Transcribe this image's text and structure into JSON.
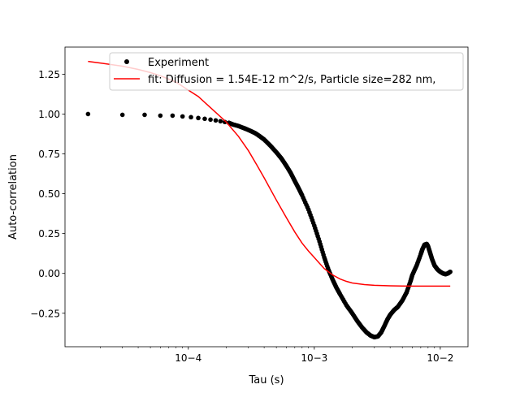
{
  "chart_data": {
    "type": "scatter",
    "title": "",
    "xlabel": "Tau (s)",
    "ylabel": "Auto-correlation",
    "x_scale": "log",
    "xlim": [
      1.05e-05,
      0.0166
    ],
    "ylim": [
      -0.46,
      1.42
    ],
    "x_ticks": [
      {
        "value": 0.0001,
        "label": "10−4"
      },
      {
        "value": 0.001,
        "label": "10−3"
      },
      {
        "value": 0.01,
        "label": "10−2"
      }
    ],
    "y_ticks": [
      {
        "value": -0.25,
        "label": "−0.25"
      },
      {
        "value": 0.0,
        "label": "0.00"
      },
      {
        "value": 0.25,
        "label": "0.25"
      },
      {
        "value": 0.5,
        "label": "0.50"
      },
      {
        "value": 0.75,
        "label": "0.75"
      },
      {
        "value": 1.0,
        "label": "1.00"
      },
      {
        "value": 1.25,
        "label": "1.25"
      }
    ],
    "grid": false,
    "legend_position": "top-right",
    "series": [
      {
        "name": "Experiment",
        "kind": "points",
        "color": "#000000",
        "x": [
          1.6e-05,
          3e-05,
          4.5e-05,
          6e-05,
          7.5e-05,
          9e-05,
          0.000105,
          0.00012,
          0.000135,
          0.00015,
          0.000165,
          0.00018,
          0.000195,
          0.00021,
          0.000225,
          0.00025,
          0.00028,
          0.00031,
          0.00034,
          0.00037,
          0.0004,
          0.00045,
          0.0005,
          0.00055,
          0.0006,
          0.00065,
          0.0007,
          0.00075,
          0.0008,
          0.0009,
          0.001,
          0.0011,
          0.0012,
          0.0013,
          0.0014,
          0.0015,
          0.0016,
          0.0018,
          0.002,
          0.0022,
          0.0024,
          0.0026,
          0.0028,
          0.003,
          0.0032,
          0.0034,
          0.0036,
          0.0038,
          0.004,
          0.0043,
          0.0046,
          0.005,
          0.0054,
          0.0058,
          0.006,
          0.0065,
          0.007,
          0.0072,
          0.0075,
          0.0078,
          0.008,
          0.0083,
          0.0086,
          0.009,
          0.0095,
          0.01,
          0.0105,
          0.011,
          0.0115,
          0.012
        ],
        "y": [
          1.0,
          0.995,
          0.995,
          0.99,
          0.99,
          0.985,
          0.98,
          0.975,
          0.97,
          0.965,
          0.96,
          0.955,
          0.95,
          0.945,
          0.935,
          0.925,
          0.91,
          0.895,
          0.88,
          0.86,
          0.84,
          0.8,
          0.76,
          0.72,
          0.675,
          0.63,
          0.58,
          0.535,
          0.49,
          0.4,
          0.3,
          0.2,
          0.1,
          0.02,
          -0.04,
          -0.09,
          -0.13,
          -0.2,
          -0.25,
          -0.3,
          -0.34,
          -0.37,
          -0.39,
          -0.4,
          -0.395,
          -0.37,
          -0.33,
          -0.29,
          -0.26,
          -0.23,
          -0.21,
          -0.17,
          -0.12,
          -0.05,
          -0.01,
          0.05,
          0.12,
          0.15,
          0.18,
          0.185,
          0.17,
          0.13,
          0.09,
          0.05,
          0.025,
          0.01,
          0.0,
          -0.005,
          0.0,
          0.01
        ]
      },
      {
        "name": "fit: Diffusion = 1.54E-12 m^2/s, Particle size=282 nm,",
        "kind": "line",
        "color": "#ff0000",
        "x": [
          1.6e-05,
          2e-05,
          3e-05,
          4e-05,
          5e-05,
          6e-05,
          8e-05,
          0.0001,
          0.00012,
          0.00015,
          0.0002,
          0.00025,
          0.0003,
          0.00035,
          0.0004,
          0.0005,
          0.0006,
          0.0007,
          0.0008,
          0.0009,
          0.001,
          0.0012,
          0.0014,
          0.0016,
          0.0018,
          0.002,
          0.0025,
          0.003,
          0.004,
          0.005,
          0.006,
          0.008,
          0.01,
          0.012
        ],
        "y": [
          1.33,
          1.32,
          1.3,
          1.28,
          1.26,
          1.24,
          1.2,
          1.15,
          1.11,
          1.04,
          0.95,
          0.86,
          0.77,
          0.68,
          0.6,
          0.46,
          0.35,
          0.26,
          0.19,
          0.14,
          0.1,
          0.03,
          -0.01,
          -0.035,
          -0.05,
          -0.06,
          -0.07,
          -0.075,
          -0.078,
          -0.079,
          -0.08,
          -0.08,
          -0.08,
          -0.08
        ]
      }
    ]
  }
}
